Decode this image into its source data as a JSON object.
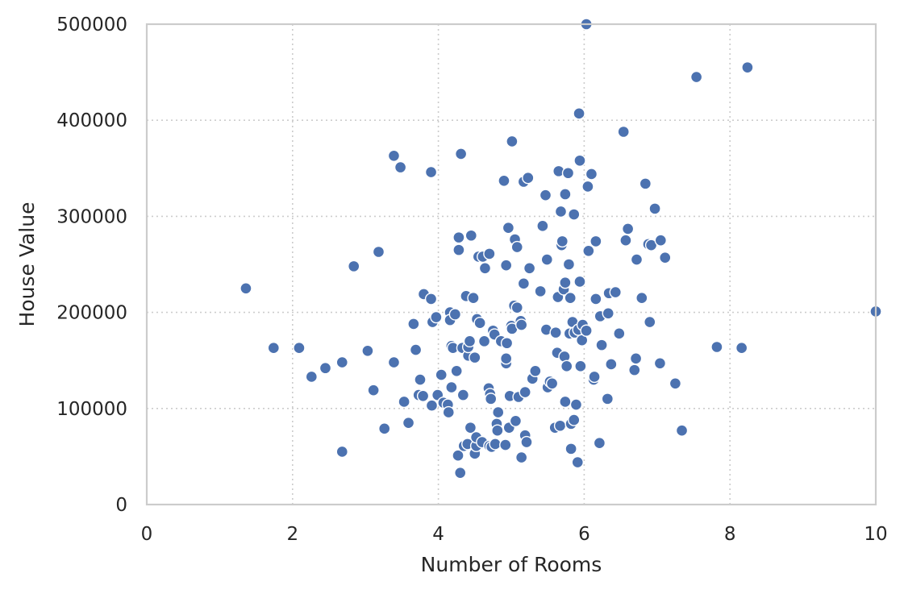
{
  "chart_data": {
    "type": "scatter",
    "title": "",
    "xlabel": "Number of Rooms",
    "ylabel": "House Value",
    "xlim": [
      0,
      10
    ],
    "ylim": [
      0,
      500000
    ],
    "xticks": [
      0,
      2,
      4,
      6,
      8,
      10
    ],
    "yticks": [
      0,
      100000,
      200000,
      300000,
      400000,
      500000
    ],
    "grid": true,
    "grid_style": "dotted",
    "marker_color": "#4C72B0",
    "points": [
      [
        1.36,
        225000
      ],
      [
        1.74,
        163000
      ],
      [
        2.09,
        163000
      ],
      [
        2.26,
        133000
      ],
      [
        2.45,
        142000
      ],
      [
        2.68,
        148000
      ],
      [
        2.68,
        55000
      ],
      [
        2.84,
        248000
      ],
      [
        3.03,
        160000
      ],
      [
        3.11,
        119000
      ],
      [
        3.18,
        263000
      ],
      [
        3.26,
        79000
      ],
      [
        3.39,
        148000
      ],
      [
        3.39,
        363000
      ],
      [
        3.48,
        351000
      ],
      [
        3.53,
        107000
      ],
      [
        3.59,
        85000
      ],
      [
        3.66,
        188000
      ],
      [
        3.69,
        161000
      ],
      [
        3.73,
        114000
      ],
      [
        3.75,
        130000
      ],
      [
        3.79,
        113000
      ],
      [
        3.8,
        219000
      ],
      [
        3.9,
        346000
      ],
      [
        3.9,
        214000
      ],
      [
        3.92,
        190000
      ],
      [
        3.91,
        103000
      ],
      [
        3.97,
        195000
      ],
      [
        3.99,
        114000
      ],
      [
        4.04,
        135000
      ],
      [
        4.07,
        106000
      ],
      [
        4.13,
        104000
      ],
      [
        4.14,
        96000
      ],
      [
        4.16,
        200000
      ],
      [
        4.16,
        192000
      ],
      [
        4.18,
        122000
      ],
      [
        4.18,
        165000
      ],
      [
        4.2,
        163000
      ],
      [
        4.23,
        198000
      ],
      [
        4.25,
        139000
      ],
      [
        4.27,
        51000
      ],
      [
        4.28,
        278000
      ],
      [
        4.28,
        265000
      ],
      [
        4.3,
        33000
      ],
      [
        4.31,
        365000
      ],
      [
        4.33,
        163000
      ],
      [
        4.34,
        114000
      ],
      [
        4.35,
        61000
      ],
      [
        4.38,
        217000
      ],
      [
        4.4,
        63000
      ],
      [
        4.41,
        155000
      ],
      [
        4.41,
        164000
      ],
      [
        4.43,
        170000
      ],
      [
        4.45,
        280000
      ],
      [
        4.44,
        80000
      ],
      [
        4.48,
        215000
      ],
      [
        4.5,
        53000
      ],
      [
        4.5,
        153000
      ],
      [
        4.52,
        61000
      ],
      [
        4.52,
        70000
      ],
      [
        4.53,
        193000
      ],
      [
        4.55,
        258000
      ],
      [
        4.57,
        189000
      ],
      [
        4.6,
        65000
      ],
      [
        4.61,
        258000
      ],
      [
        4.63,
        170000
      ],
      [
        4.64,
        246000
      ],
      [
        4.69,
        121000
      ],
      [
        4.7,
        261000
      ],
      [
        4.7,
        61000
      ],
      [
        4.71,
        115000
      ],
      [
        4.72,
        110000
      ],
      [
        4.73,
        60000
      ],
      [
        4.75,
        181000
      ],
      [
        4.77,
        177000
      ],
      [
        4.78,
        63000
      ],
      [
        4.8,
        84000
      ],
      [
        4.81,
        77000
      ],
      [
        4.82,
        96000
      ],
      [
        4.86,
        170000
      ],
      [
        4.9,
        337000
      ],
      [
        4.92,
        62000
      ],
      [
        4.93,
        249000
      ],
      [
        4.93,
        147000
      ],
      [
        4.93,
        152000
      ],
      [
        4.94,
        168000
      ],
      [
        4.96,
        288000
      ],
      [
        4.97,
        80000
      ],
      [
        4.98,
        113000
      ],
      [
        5.0,
        186000
      ],
      [
        5.01,
        378000
      ],
      [
        5.01,
        183000
      ],
      [
        5.04,
        207000
      ],
      [
        5.05,
        276000
      ],
      [
        5.06,
        87000
      ],
      [
        5.08,
        205000
      ],
      [
        5.08,
        268000
      ],
      [
        5.1,
        112000
      ],
      [
        5.13,
        191000
      ],
      [
        5.14,
        187000
      ],
      [
        5.14,
        49000
      ],
      [
        5.17,
        230000
      ],
      [
        5.17,
        336000
      ],
      [
        5.19,
        117000
      ],
      [
        5.19,
        72000
      ],
      [
        5.21,
        65000
      ],
      [
        5.23,
        340000
      ],
      [
        5.25,
        246000
      ],
      [
        5.29,
        131000
      ],
      [
        5.33,
        139000
      ],
      [
        5.4,
        222000
      ],
      [
        5.43,
        290000
      ],
      [
        5.47,
        322000
      ],
      [
        5.48,
        182000
      ],
      [
        5.49,
        255000
      ],
      [
        5.5,
        122000
      ],
      [
        5.53,
        128000
      ],
      [
        5.56,
        126000
      ],
      [
        5.6,
        80000
      ],
      [
        5.61,
        179000
      ],
      [
        5.63,
        158000
      ],
      [
        5.64,
        216000
      ],
      [
        5.65,
        347000
      ],
      [
        5.67,
        82000
      ],
      [
        5.68,
        305000
      ],
      [
        5.69,
        270000
      ],
      [
        5.7,
        274000
      ],
      [
        5.72,
        224000
      ],
      [
        5.73,
        154000
      ],
      [
        5.74,
        231000
      ],
      [
        5.74,
        107000
      ],
      [
        5.74,
        323000
      ],
      [
        5.76,
        144000
      ],
      [
        5.78,
        345000
      ],
      [
        5.79,
        250000
      ],
      [
        5.8,
        178000
      ],
      [
        5.81,
        215000
      ],
      [
        5.82,
        84000
      ],
      [
        5.82,
        58000
      ],
      [
        5.84,
        190000
      ],
      [
        5.86,
        302000
      ],
      [
        5.86,
        88000
      ],
      [
        5.87,
        179000
      ],
      [
        5.89,
        104000
      ],
      [
        5.91,
        44000
      ],
      [
        5.92,
        182000
      ],
      [
        5.93,
        407000
      ],
      [
        5.94,
        232000
      ],
      [
        5.94,
        358000
      ],
      [
        5.95,
        144000
      ],
      [
        5.97,
        171000
      ],
      [
        5.98,
        187000
      ],
      [
        6.03,
        181000
      ],
      [
        6.03,
        500000
      ],
      [
        6.05,
        331000
      ],
      [
        6.06,
        264000
      ],
      [
        6.1,
        344000
      ],
      [
        6.13,
        130000
      ],
      [
        6.14,
        133000
      ],
      [
        6.16,
        274000
      ],
      [
        6.16,
        214000
      ],
      [
        6.21,
        64000
      ],
      [
        6.22,
        196000
      ],
      [
        6.24,
        166000
      ],
      [
        6.32,
        110000
      ],
      [
        6.33,
        199000
      ],
      [
        6.34,
        220000
      ],
      [
        6.37,
        146000
      ],
      [
        6.43,
        221000
      ],
      [
        6.48,
        178000
      ],
      [
        6.54,
        388000
      ],
      [
        6.57,
        275000
      ],
      [
        6.6,
        287000
      ],
      [
        6.69,
        140000
      ],
      [
        6.71,
        152000
      ],
      [
        6.72,
        255000
      ],
      [
        6.79,
        215000
      ],
      [
        6.84,
        334000
      ],
      [
        6.88,
        271000
      ],
      [
        6.9,
        190000
      ],
      [
        6.92,
        270000
      ],
      [
        6.97,
        308000
      ],
      [
        7.04,
        147000
      ],
      [
        7.05,
        275000
      ],
      [
        7.11,
        257000
      ],
      [
        7.25,
        126000
      ],
      [
        7.34,
        77000
      ],
      [
        7.54,
        445000
      ],
      [
        7.82,
        164000
      ],
      [
        8.16,
        163000
      ],
      [
        8.24,
        455000
      ],
      [
        10.0,
        201000
      ]
    ]
  }
}
